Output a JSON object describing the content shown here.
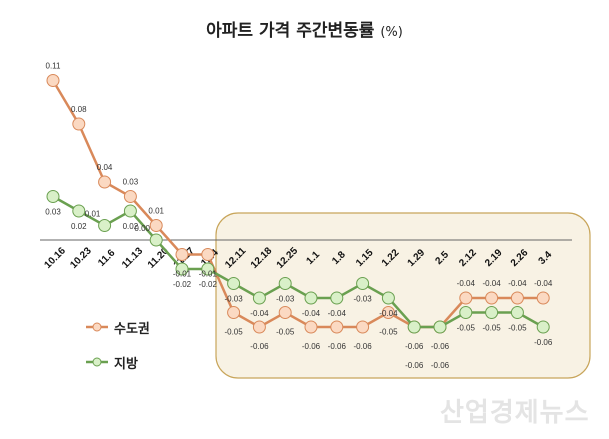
{
  "chart_data": {
    "type": "line",
    "title": "아파트 가격 주간변동률",
    "unit": "(%)",
    "categories": [
      "10.16",
      "10.23",
      "11.6",
      "11.13",
      "11.20",
      "11.27",
      "12.4",
      "12.11",
      "12.18",
      "12.25",
      "1.1",
      "1.8",
      "1.15",
      "1.22",
      "1.29",
      "2.5",
      "2.12",
      "2.19",
      "2.26",
      "3.4"
    ],
    "series": [
      {
        "name": "수도권",
        "color": "#d9895a",
        "fill": "#fbd9c2",
        "values": [
          0.11,
          0.08,
          0.04,
          0.03,
          0.01,
          -0.01,
          -0.01,
          -0.05,
          -0.06,
          -0.05,
          -0.06,
          -0.06,
          -0.06,
          -0.05,
          -0.06,
          -0.06,
          -0.04,
          -0.04,
          -0.04,
          -0.04
        ]
      },
      {
        "name": "지방",
        "color": "#6aa050",
        "fill": "#d9f0c8",
        "values": [
          0.03,
          0.02,
          0.01,
          0.02,
          0.0,
          -0.02,
          -0.02,
          -0.03,
          -0.04,
          -0.03,
          -0.04,
          -0.04,
          -0.03,
          -0.04,
          -0.06,
          -0.06,
          -0.05,
          -0.05,
          -0.05,
          -0.06
        ]
      }
    ],
    "highlight_range": [
      "12.11",
      "3.4"
    ],
    "grid": false,
    "legend_position": "left"
  },
  "watermark": "산업경제뉴스"
}
